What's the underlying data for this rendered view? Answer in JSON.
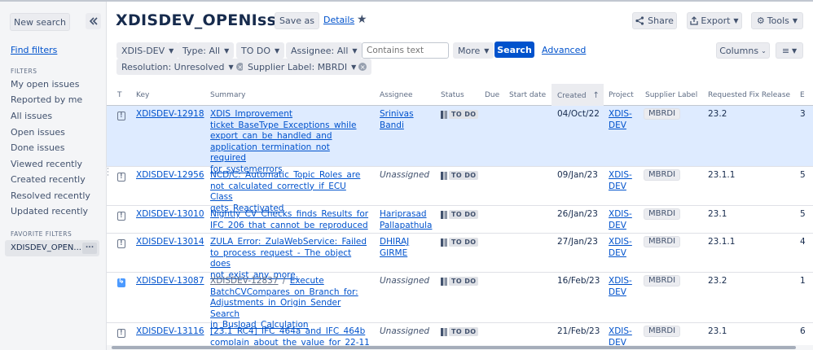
{
  "sidebar": {
    "new_search": "New search",
    "collapse_icon": "double-chevron-left-icon",
    "find_filters": "Find filters",
    "filters_heading": "FILTERS",
    "filters": [
      "My open issues",
      "Reported by me",
      "All issues",
      "Open issues",
      "Done issues",
      "Viewed recently",
      "Created recently",
      "Resolved recently",
      "Updated recently"
    ],
    "favorite_heading": "FAVORITE FILTERS",
    "favorite_item": "XDISDEV_OPEN...",
    "favorite_more": "..."
  },
  "header": {
    "title": "XDISDEV_OPENIssues",
    "save_as": "Save as",
    "details": "Details",
    "star_icon": "star-icon",
    "share": "Share",
    "export": "Export",
    "tools": "Tools"
  },
  "filterbar": {
    "project": "XDIS-DEV",
    "type": "Type: All",
    "status": "TO DO",
    "assignee": "Assignee: All",
    "text_placeholder": "Contains text",
    "more": "More",
    "search": "Search",
    "advanced": "Advanced",
    "resolution": "Resolution: Unresolved",
    "supplier_label": "Supplier Label: MBRDI",
    "columns": "Columns"
  },
  "table": {
    "headers": {
      "t": "T",
      "key": "Key",
      "summary": "Summary",
      "assignee": "Assignee",
      "status": "Status",
      "due": "Due",
      "start_date": "Start date",
      "created": "Created",
      "project": "Project",
      "supplier_label": "Supplier Label",
      "requested_fix_release": "Requested Fix Release",
      "extra": "E"
    },
    "rows": [
      {
        "key": "XDISDEV-12918",
        "summary": [
          "XDIS Improvement",
          "ticket BaseType Exceptions while",
          "export can be handled and",
          "application termination not required",
          "for systemerrors"
        ],
        "assignee": [
          "Srinivas",
          "Bandi"
        ],
        "status": "TO DO",
        "created": "04/Oct/22",
        "project": [
          "XDIS-",
          "DEV"
        ],
        "supplier_label": "MBRDI",
        "fix_release": "23.2",
        "extra": "3"
      },
      {
        "key": "XDISDEV-12956",
        "summary": [
          "NCD/C: Automatic Topic Roles are",
          "not calculated correctly if ECU Class",
          "gets Reactivated"
        ],
        "assignee": [
          "Unassigned"
        ],
        "status": "TO DO",
        "created": "09/Jan/23",
        "project": [
          "XDIS-",
          "DEV"
        ],
        "supplier_label": "MBRDI",
        "fix_release": "23.1.1",
        "extra": "5"
      },
      {
        "key": "XDISDEV-13010",
        "summary": [
          "Nightly CV Checks finds Results for",
          "IFC 206 that cannot be reproduced"
        ],
        "assignee": [
          "Hariprasad",
          "Pallapathula"
        ],
        "status": "TO DO",
        "created": "26/Jan/23",
        "project": [
          "XDIS-",
          "DEV"
        ],
        "supplier_label": "MBRDI",
        "fix_release": "23.1",
        "extra": "5"
      },
      {
        "key": "XDISDEV-13014",
        "summary": [
          "ZULA Error: ZulaWebService: Failed",
          "to process request - The object does",
          "not exist any more."
        ],
        "assignee": [
          "DHIRAJ",
          "GIRME"
        ],
        "status": "TO DO",
        "created": "27/Jan/23",
        "project": [
          "XDIS-",
          "DEV"
        ],
        "supplier_label": "MBRDI",
        "fix_release": "23.1.1",
        "extra": "4"
      },
      {
        "key": "XDISDEV-13087",
        "parent": "XDISDEV-12837",
        "summary": [
          "Execute",
          "BatchCVCompares on Branch for:",
          "Adjustments in Origin Sender Search",
          "in Busload Calculation"
        ],
        "assignee": [
          "Unassigned"
        ],
        "status": "TO DO",
        "created": "16/Feb/23",
        "project": [
          "XDIS-",
          "DEV"
        ],
        "supplier_label": "MBRDI",
        "fix_release": "23.2",
        "extra": "1"
      },
      {
        "key": "XDISDEV-13116",
        "summary": [
          "[23.1 RC4] IFC 464a and IFC 464b",
          "complain about the value for 22-11"
        ],
        "assignee": [
          "Unassigned"
        ],
        "status": "TO DO",
        "created": "21/Feb/23",
        "project": [
          "XDIS-",
          "DEV"
        ],
        "supplier_label": "MBRDI",
        "fix_release": "23.1",
        "extra": "6"
      }
    ]
  }
}
